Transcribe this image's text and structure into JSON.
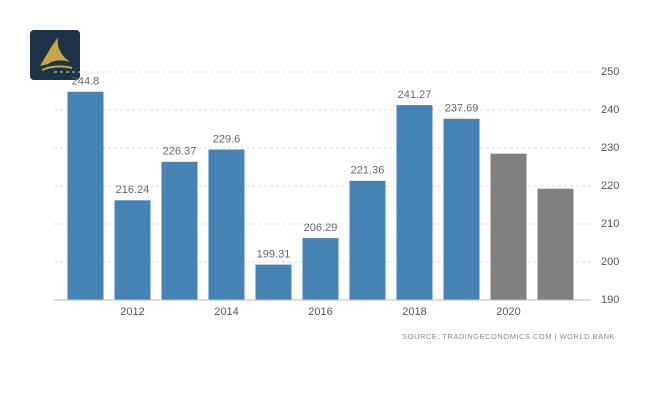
{
  "chart_data": {
    "type": "bar",
    "categories": [
      null,
      "2012",
      null,
      "2014",
      null,
      "2016",
      null,
      "2018",
      null,
      "2020",
      null
    ],
    "values": [
      244.8,
      216.24,
      226.37,
      229.6,
      199.31,
      206.29,
      221.36,
      241.27,
      237.69,
      228.5,
      219.3
    ],
    "value_labels": [
      "244.8",
      "216.24",
      "226.37",
      "229.6",
      "199.31",
      "206.29",
      "221.36",
      "241.27",
      "237.69",
      null,
      null
    ],
    "colors": [
      "#4682b4",
      "#4682b4",
      "#4682b4",
      "#4682b4",
      "#4682b4",
      "#4682b4",
      "#4682b4",
      "#4682b4",
      "#4682b4",
      "#808080",
      "#808080"
    ],
    "ylim": [
      190,
      250
    ],
    "yticks": [
      190,
      200,
      210,
      220,
      230,
      240,
      250
    ],
    "grid": true,
    "y_axis_side": "right",
    "source": "SOURCE: TRADINGECONOMICS.COM | WORLD BANK"
  }
}
